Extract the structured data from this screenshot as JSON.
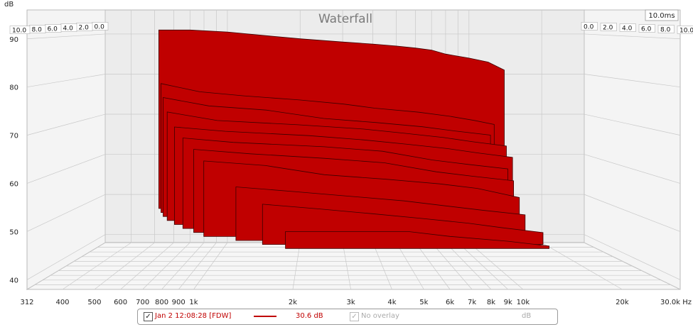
{
  "chart_data": {
    "type": "area",
    "title": "Waterfall",
    "ylabel": "dB",
    "time_label": "10.0ms",
    "ylim": [
      38,
      96
    ],
    "xlim": [
      312,
      30000
    ],
    "x_scale": "log",
    "y_ticks": [
      "90",
      "80",
      "70",
      "60",
      "50",
      "40"
    ],
    "x_ticks": [
      "312",
      "400",
      "500",
      "600",
      "700",
      "800",
      "900",
      "1k",
      "2k",
      "3k",
      "4k",
      "5k",
      "6k",
      "7k",
      "8k",
      "9k",
      "10k",
      "20k",
      "30.0k Hz"
    ],
    "time_slices_left": [
      "0.0",
      "2.0",
      "4.0",
      "6.0",
      "8.0",
      "10.0"
    ],
    "time_slices_right": [
      "0.0",
      "2.0",
      "4.0",
      "6.0",
      "8.0",
      "10.0"
    ],
    "fill_color": "#c00000",
    "series": [
      {
        "time_ms": 0.0,
        "freq_start": 520,
        "freq": [
          520,
          700,
          1000,
          1500,
          2000,
          3000,
          4000,
          5000,
          6000,
          7000,
          8000,
          10000,
          12000,
          14000
        ],
        "db": [
          91,
          91,
          90.5,
          89.5,
          88.8,
          88,
          87.5,
          87,
          86.5,
          86,
          85,
          84,
          83,
          81
        ]
      },
      {
        "time_ms": 1.0,
        "freq_start": 560,
        "freq": [
          560,
          800,
          1200,
          2000,
          3000,
          4000,
          6000,
          8000,
          10000,
          12000
        ],
        "db": [
          78,
          76,
          75,
          74,
          73,
          72,
          71,
          70,
          69,
          68
        ]
      },
      {
        "time_ms": 2.0,
        "freq_start": 600,
        "freq": [
          600,
          900,
          1500,
          2500,
          4000,
          6000,
          8000,
          11000
        ],
        "db": [
          75,
          73,
          72,
          70,
          69,
          68,
          67,
          66
        ]
      },
      {
        "time_ms": 3.0,
        "freq_start": 650,
        "freq": [
          650,
          1000,
          2000,
          3500,
          5000,
          7000,
          9000,
          12000
        ],
        "db": [
          72,
          70,
          69,
          68,
          67,
          66,
          65,
          64
        ]
      },
      {
        "time_ms": 4.0,
        "freq_start": 720,
        "freq": [
          720,
          1100,
          2200,
          3500,
          5000,
          7000,
          9000,
          12000
        ],
        "db": [
          69,
          68,
          67,
          66,
          65,
          64,
          63,
          62
        ]
      },
      {
        "time_ms": 5.0,
        "freq_start": 800,
        "freq": [
          800,
          1200,
          2500,
          4000,
          6000,
          8000,
          11000
        ],
        "db": [
          67,
          66,
          65,
          64,
          62,
          61,
          60
        ]
      },
      {
        "time_ms": 6.0,
        "freq_start": 900,
        "freq": [
          900,
          1400,
          2500,
          4000,
          6000,
          8000,
          11000
        ],
        "db": [
          65,
          64,
          63,
          62,
          60,
          59,
          58
        ]
      },
      {
        "time_ms": 7.0,
        "freq_start": 1000,
        "freq": [
          1000,
          1600,
          2500,
          4000,
          6000,
          8000,
          11000
        ],
        "db": [
          63,
          62,
          60,
          59,
          58,
          57,
          55
        ]
      },
      {
        "time_ms": 8.0,
        "freq_start": 1300,
        "freq": [
          1300,
          2000,
          3000,
          4500,
          6000,
          8000,
          11000
        ],
        "db": [
          58,
          57,
          56,
          55,
          54,
          53,
          52
        ]
      },
      {
        "time_ms": 9.0,
        "freq_start": 1600,
        "freq": [
          1600,
          2400,
          3500,
          5000,
          7000,
          9000,
          12000
        ],
        "db": [
          55,
          54,
          53,
          52,
          51,
          50,
          49
        ]
      },
      {
        "time_ms": 10.0,
        "freq_start": 1900,
        "freq": [
          1900,
          3000,
          4500,
          6000,
          9000,
          12000
        ],
        "db": [
          50,
          50,
          50,
          49,
          48,
          47
        ]
      }
    ]
  },
  "legend": {
    "measurement": "Jan 2 12:08:28 [FDW]",
    "value": "30.6 dB",
    "overlay": "No overlay",
    "unit": "dB",
    "checked_symbol": "✓"
  }
}
